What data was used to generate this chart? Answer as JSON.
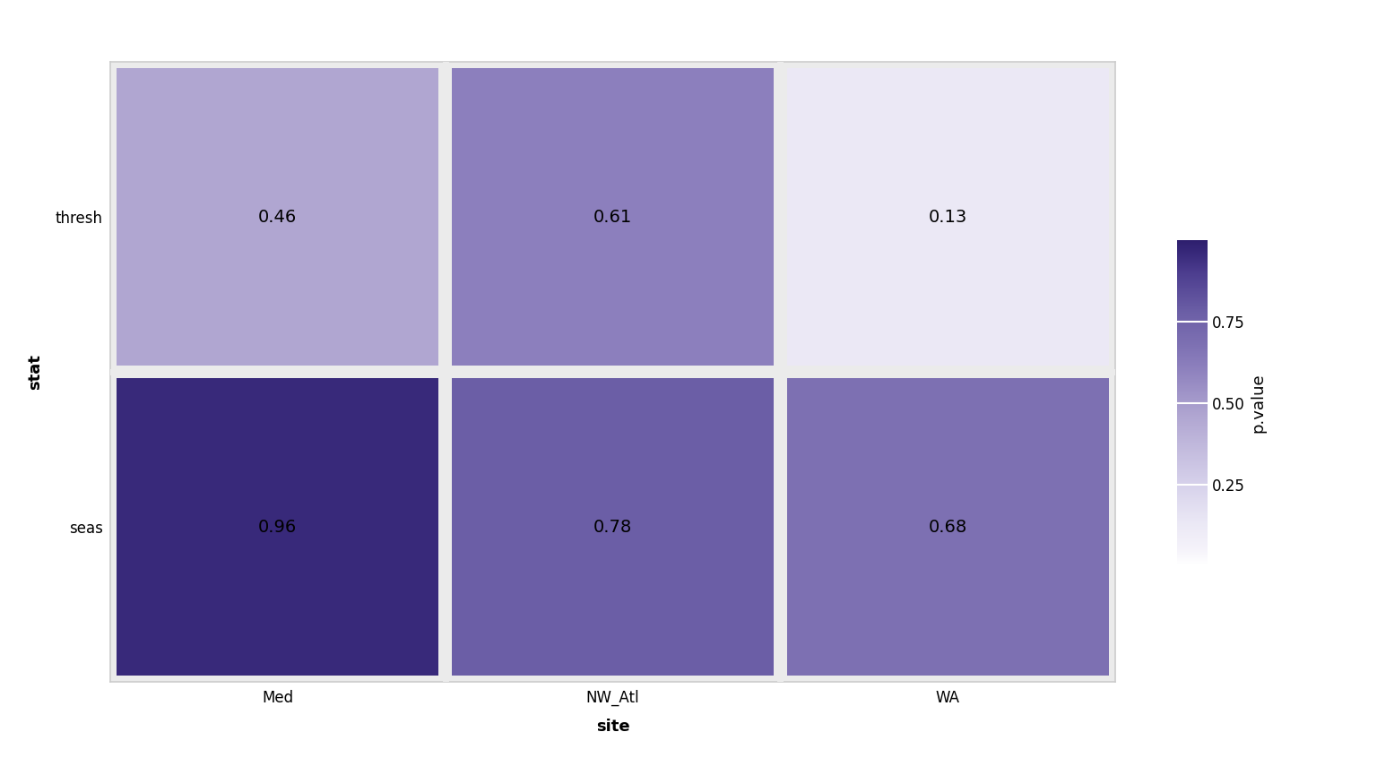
{
  "x_labels": [
    "Med",
    "NW_Atl",
    "WA"
  ],
  "y_labels": [
    "seas",
    "thresh"
  ],
  "values": [
    [
      0.96,
      0.78,
      0.68
    ],
    [
      0.46,
      0.61,
      0.13
    ]
  ],
  "xlabel": "site",
  "ylabel": "stat",
  "colorbar_label": "p.value",
  "colorbar_ticks": [
    0.25,
    0.5,
    0.75
  ],
  "vmin": 0.0,
  "vmax": 1.0,
  "panel_background": "#EBEBEB",
  "label_fontsize": 13,
  "tick_fontsize": 12,
  "value_fontsize": 14,
  "cell_gap_color": "#EBEBEB"
}
